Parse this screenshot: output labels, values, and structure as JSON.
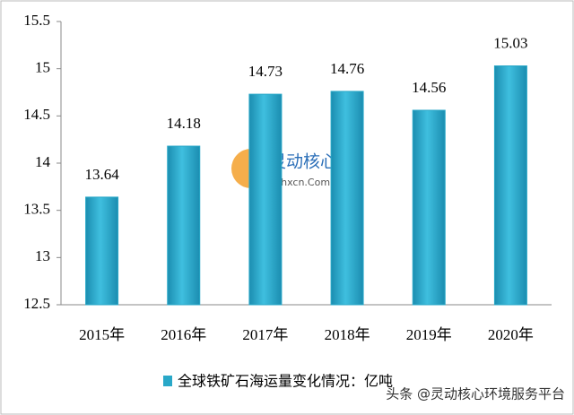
{
  "chart_data": {
    "type": "bar",
    "categories": [
      "2015年",
      "2016年",
      "2017年",
      "2018年",
      "2019年",
      "2020年"
    ],
    "series": [
      {
        "name": "全球铁矿石海运量变化情况：亿吨",
        "color": "#29a8c8",
        "values": [
          13.64,
          14.18,
          14.73,
          14.76,
          14.56,
          15.03
        ]
      }
    ],
    "ylim": [
      12.5,
      15.5
    ],
    "yticks": [
      12.5,
      13,
      13.5,
      14,
      14.5,
      15,
      15.5
    ],
    "grid": false,
    "legend": "bottom",
    "watermarks": [
      "灵动核心",
      "Ldhxcn.Com",
      "头条 @灵动核心环境服务平台"
    ]
  }
}
